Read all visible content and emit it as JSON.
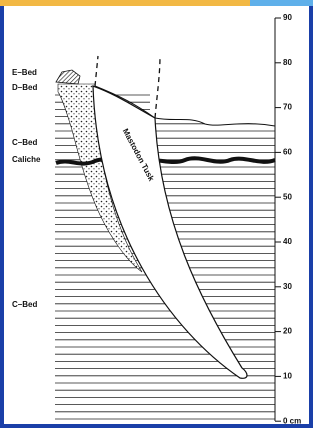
{
  "bed_labels": [
    "E–Bed",
    "D–Bed",
    "C–Bed",
    "Caliche",
    "C–Bed"
  ],
  "tusk_label": "Mastodon Tusk",
  "scale_ticks": [
    "90",
    "80",
    "70",
    "60",
    "50",
    "40",
    "30",
    "20",
    "10",
    "0 cm"
  ]
}
